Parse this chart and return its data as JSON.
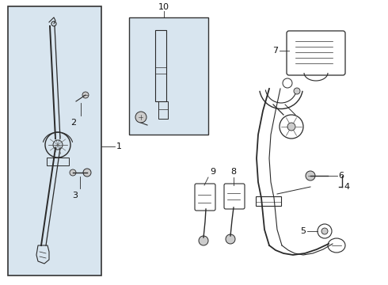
{
  "bg_color": "#ffffff",
  "panel_bg": "#d8e5ef",
  "line_color": "#2a2a2a",
  "border_color": "#333333",
  "label_color": "#111111",
  "fig_w": 4.9,
  "fig_h": 3.6,
  "dpi": 100
}
